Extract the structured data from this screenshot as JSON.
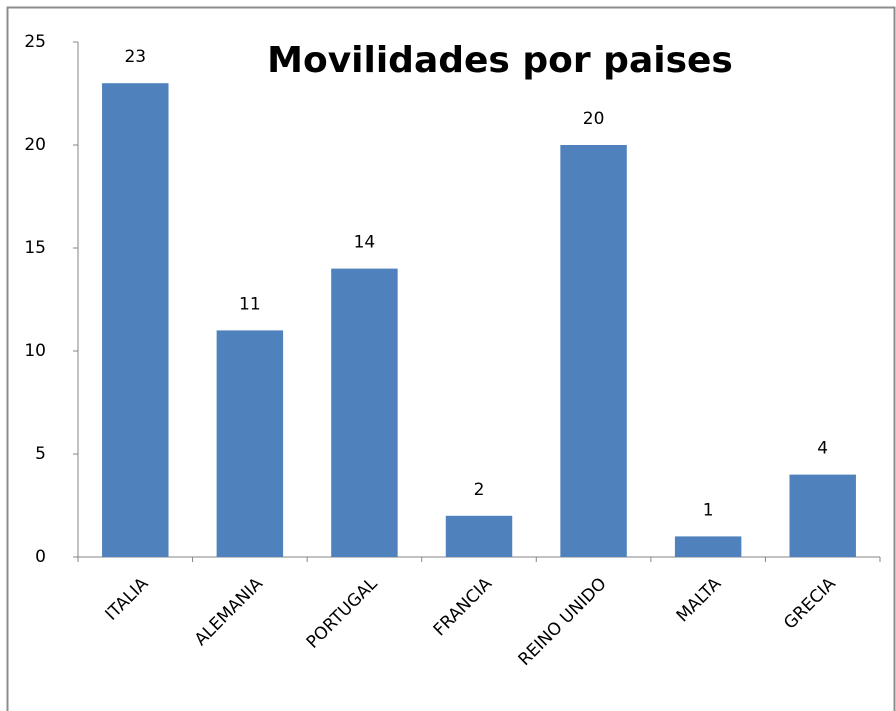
{
  "chart_data": {
    "type": "bar",
    "title": "Movilidades por paises",
    "categories": [
      "ITALIA",
      "ALEMANIA",
      "PORTUGAL",
      "FRANCIA",
      "REINO UNIDO",
      "MALTA",
      "GRECIA"
    ],
    "values": [
      23,
      11,
      14,
      2,
      20,
      1,
      4
    ],
    "color": "#4f81bd",
    "ylim": [
      0,
      25
    ],
    "yticks": [
      0,
      5,
      10,
      15,
      20,
      25
    ],
    "grid": false
  }
}
